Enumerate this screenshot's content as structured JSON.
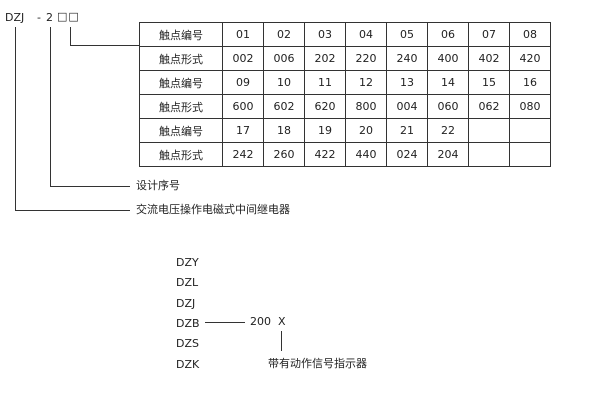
{
  "code": {
    "prefix": "DZJ",
    "dash": "-",
    "series": "2",
    "boxes": "□□"
  },
  "table": {
    "rows": [
      {
        "label": "触点编号",
        "cells": [
          "01",
          "02",
          "03",
          "04",
          "05",
          "06",
          "07",
          "08"
        ]
      },
      {
        "label": "触点形式",
        "cells": [
          "002",
          "006",
          "202",
          "220",
          "240",
          "400",
          "402",
          "420"
        ]
      },
      {
        "label": "触点编号",
        "cells": [
          "09",
          "10",
          "11",
          "12",
          "13",
          "14",
          "15",
          "16"
        ]
      },
      {
        "label": "触点形式",
        "cells": [
          "600",
          "602",
          "620",
          "800",
          "004",
          "060",
          "062",
          "080"
        ]
      },
      {
        "label": "触点编号",
        "cells": [
          "17",
          "18",
          "19",
          "20",
          "21",
          "22",
          "",
          ""
        ]
      },
      {
        "label": "触点形式",
        "cells": [
          "242",
          "260",
          "422",
          "440",
          "024",
          "204",
          "",
          ""
        ]
      }
    ]
  },
  "annotations": {
    "design_no": "设计序号",
    "relay_type": "交流电压操作电磁式中间继电器"
  },
  "variants": [
    "DZY",
    "DZL",
    "DZJ",
    "DZB",
    "DZS",
    "DZK"
  ],
  "suffix": {
    "number": "200",
    "x": "X",
    "note": "带有动作信号指示器"
  }
}
